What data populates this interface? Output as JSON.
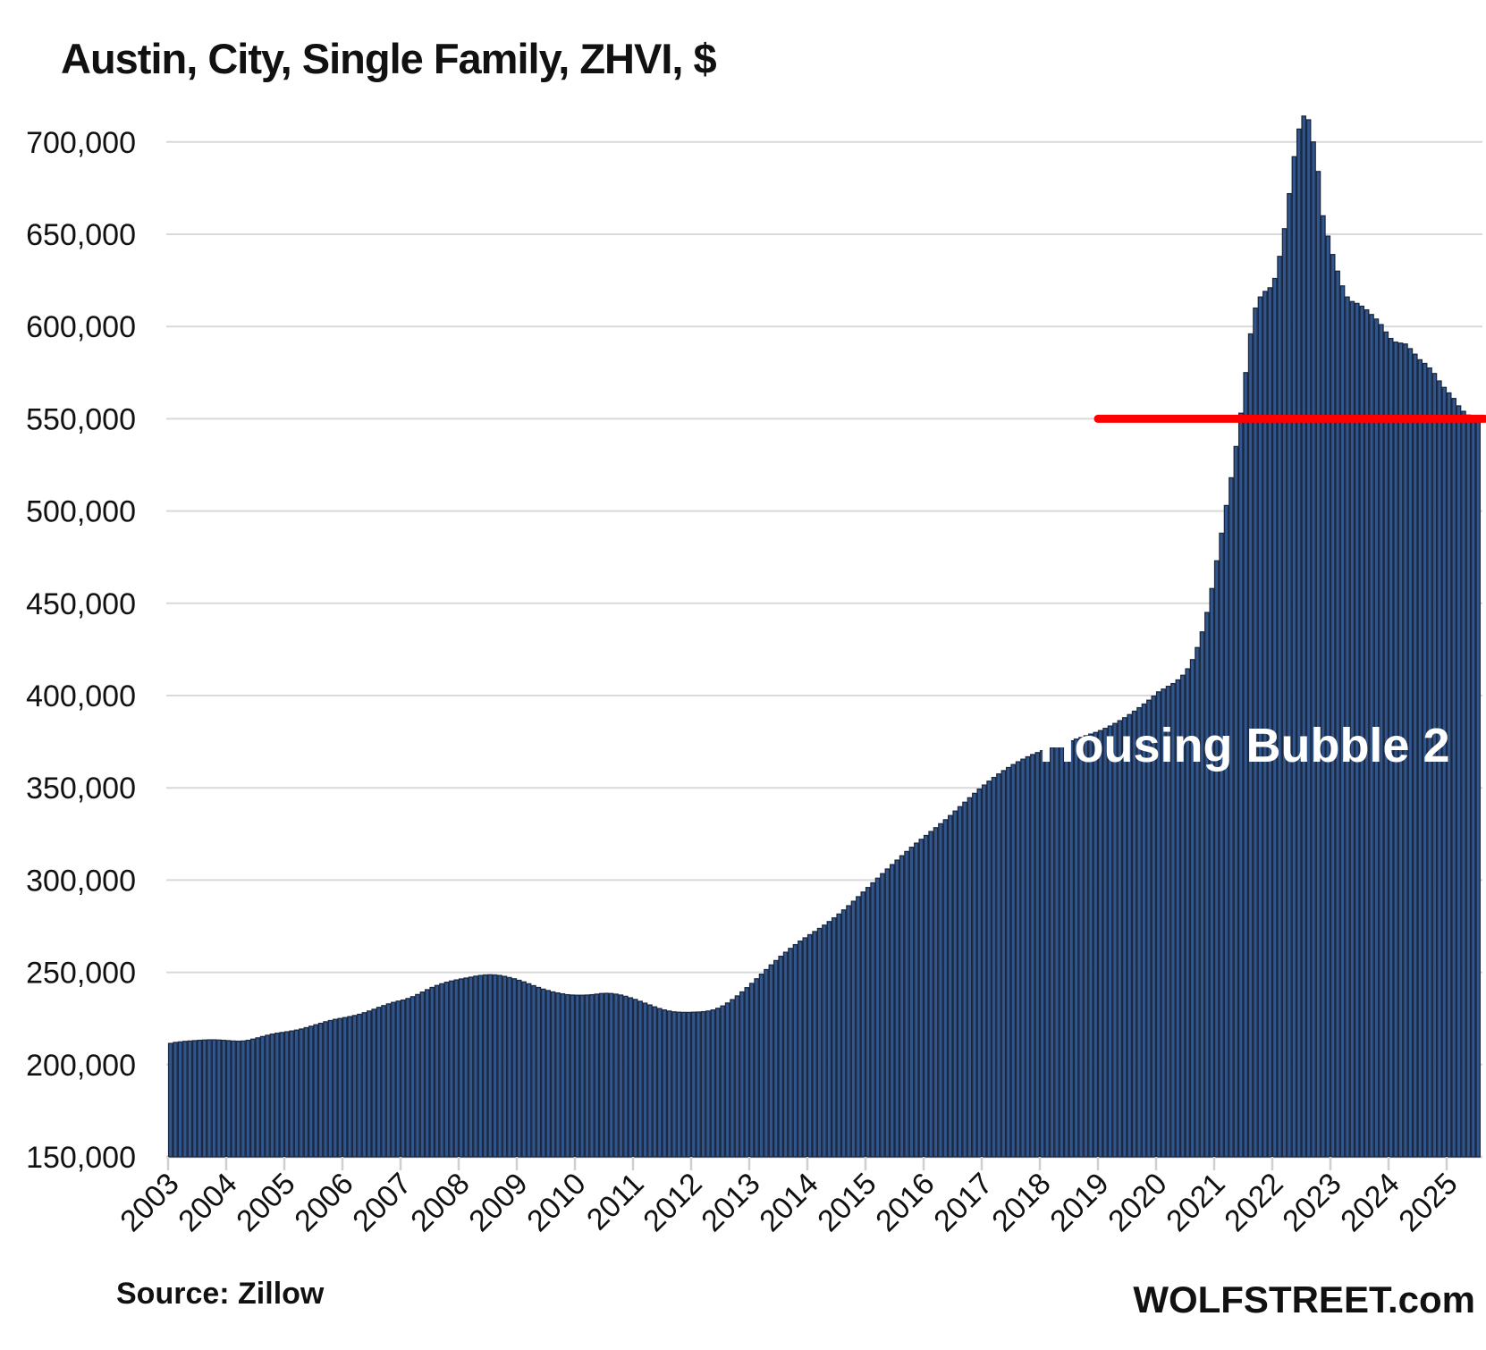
{
  "page": {
    "title": "Austin, City, Single Family, ZHVI, $"
  },
  "footer": {
    "source": "Source: Zillow",
    "site": "WOLFSTREET.com"
  },
  "annotation": {
    "text": "Housing Bubble 2",
    "color": "#ffffff"
  },
  "red_line": {
    "value": 550000,
    "start_year": 2019,
    "color": "#ff0000",
    "thickness": 9
  },
  "colors": {
    "background": "#ffffff",
    "bar_fill": "#30568D",
    "bar_stroke": "#1B2840",
    "gridline": "#D9D9D9",
    "axis_line": "#D3D3D3",
    "tick": "#CFCFCF",
    "text": "#111111",
    "annotation_text": "#ffffff",
    "red_line": "#ff0000"
  },
  "chart_data": {
    "type": "bar",
    "title": "Austin, City, Single Family, ZHVI, $",
    "unit": "USD",
    "frequency": "monthly",
    "start": "2003-01",
    "end": "2025-07",
    "ylim": [
      150000,
      700000
    ],
    "ytick_step": 50000,
    "ytick_labels": [
      "150,000",
      "200,000",
      "250,000",
      "300,000",
      "350,000",
      "400,000",
      "450,000",
      "500,000",
      "550,000",
      "600,000",
      "650,000",
      "700,000"
    ],
    "grid": "horizontal",
    "legend": "none",
    "x_year_labels": [
      "2003",
      "2004",
      "2005",
      "2006",
      "2007",
      "2008",
      "2009",
      "2010",
      "2011",
      "2012",
      "2013",
      "2014",
      "2015",
      "2016",
      "2017",
      "2018",
      "2019",
      "2020",
      "2021",
      "2022",
      "2023",
      "2024",
      "2025"
    ],
    "values": [
      211500,
      212000,
      212300,
      212600,
      212800,
      213000,
      213200,
      213300,
      213400,
      213400,
      213300,
      213200,
      213000,
      212800,
      212700,
      212800,
      213200,
      213800,
      214500,
      215200,
      215900,
      216500,
      217000,
      217400,
      217800,
      218200,
      218700,
      219300,
      220000,
      220800,
      221600,
      222400,
      223200,
      223900,
      224500,
      225000,
      225500,
      226000,
      226600,
      227300,
      228100,
      229000,
      230000,
      231000,
      232000,
      232900,
      233700,
      234400,
      235000,
      235800,
      236800,
      238000,
      239300,
      240600,
      241800,
      242900,
      243800,
      244600,
      245300,
      245900,
      246400,
      246900,
      247400,
      247900,
      248300,
      248600,
      248700,
      248600,
      248300,
      247800,
      247200,
      246500,
      245700,
      244800,
      243800,
      242800,
      241800,
      240900,
      240100,
      239400,
      238800,
      238300,
      237900,
      237700,
      237600,
      237600,
      237700,
      237900,
      238200,
      238500,
      238600,
      238500,
      238200,
      237700,
      237000,
      236200,
      235300,
      234300,
      233300,
      232300,
      231300,
      230400,
      229600,
      229000,
      228600,
      228400,
      228300,
      228300,
      228400,
      228500,
      228700,
      229000,
      229600,
      230500,
      231800,
      233400,
      235200,
      237200,
      239400,
      241700,
      244000,
      246500,
      249000,
      251500,
      254000,
      256400,
      258700,
      260900,
      263000,
      265000,
      266900,
      268700,
      270400,
      272100,
      273800,
      275600,
      277500,
      279500,
      281600,
      283800,
      286100,
      288500,
      291000,
      293500,
      296000,
      298500,
      301000,
      303500,
      306000,
      308400,
      310800,
      313200,
      315500,
      317800,
      320000,
      322100,
      324200,
      326300,
      328400,
      330500,
      332700,
      335000,
      337400,
      339800,
      342200,
      344600,
      347000,
      349300,
      351500,
      353600,
      355600,
      357500,
      359300,
      361000,
      362600,
      364100,
      365500,
      366800,
      368000,
      369100,
      370100,
      371000,
      371900,
      372800,
      373700,
      374600,
      375500,
      376400,
      377300,
      378200,
      379100,
      380000,
      381000,
      382200,
      383500,
      384900,
      386400,
      388000,
      389700,
      391500,
      393400,
      395400,
      397500,
      399700,
      402000,
      403500,
      405000,
      406500,
      408500,
      411000,
      414500,
      419500,
      426000,
      434500,
      445000,
      458000,
      473000,
      488000,
      503000,
      518000,
      535000,
      553000,
      575000,
      596000,
      610000,
      616000,
      619000,
      621000,
      626000,
      638000,
      653000,
      672000,
      692000,
      707000,
      714000,
      712000,
      700000,
      684000,
      660000,
      649000,
      639000,
      630000,
      622000,
      616000,
      613500,
      612500,
      611000,
      609000,
      606500,
      604000,
      601000,
      597000,
      593500,
      591500,
      591000,
      590500,
      588000,
      585000,
      582000,
      580000,
      577500,
      574500,
      570500,
      567000,
      564000,
      561000,
      557000,
      554000,
      552000,
      550500,
      550000
    ]
  }
}
